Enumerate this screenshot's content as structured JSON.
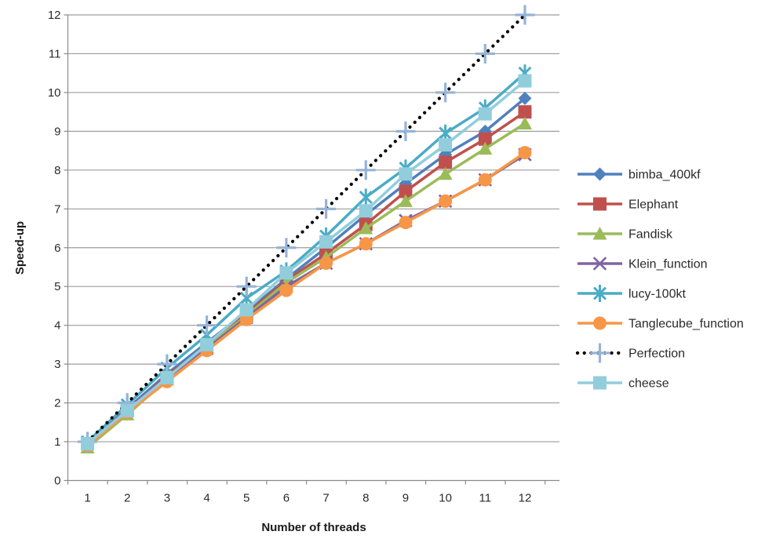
{
  "chart_data": {
    "type": "line",
    "title": "",
    "xlabel": "Number of threads",
    "ylabel": "Speed-up",
    "x": [
      1,
      2,
      3,
      4,
      5,
      6,
      7,
      8,
      9,
      10,
      11,
      12
    ],
    "ylim": [
      0,
      12
    ],
    "y_ticks": [
      0,
      1,
      2,
      3,
      4,
      5,
      6,
      7,
      8,
      9,
      10,
      11,
      12
    ],
    "grid": true,
    "legend_position": "right",
    "series": [
      {
        "name": "bimba_400kf",
        "color": "#4F81BD",
        "marker": "diamond",
        "line": "solid",
        "values": [
          0.95,
          1.85,
          2.75,
          3.55,
          4.35,
          5.2,
          6.0,
          6.85,
          7.65,
          8.4,
          9.0,
          9.85
        ]
      },
      {
        "name": "Elephant",
        "color": "#C0504D",
        "marker": "square",
        "line": "solid",
        "values": [
          0.95,
          1.8,
          2.7,
          3.45,
          4.3,
          5.15,
          5.85,
          6.6,
          7.45,
          8.2,
          8.8,
          9.5
        ]
      },
      {
        "name": "Fandisk",
        "color": "#9BBB59",
        "marker": "triangle",
        "line": "solid",
        "values": [
          0.85,
          1.7,
          2.6,
          3.45,
          4.25,
          5.1,
          5.75,
          6.5,
          7.2,
          7.9,
          8.55,
          9.2
        ]
      },
      {
        "name": "Klein_function",
        "color": "#8064A2",
        "marker": "xmark",
        "line": "solid",
        "values": [
          0.95,
          1.85,
          2.65,
          3.4,
          4.2,
          5.0,
          5.6,
          6.1,
          6.7,
          7.2,
          7.75,
          8.4
        ]
      },
      {
        "name": "lucy-100kt",
        "color": "#4BACC6",
        "marker": "asterisk",
        "line": "solid",
        "values": [
          1.0,
          1.95,
          2.9,
          3.75,
          4.7,
          5.4,
          6.3,
          7.3,
          8.05,
          8.95,
          9.6,
          10.5
        ]
      },
      {
        "name": "Tanglecube_function",
        "color": "#F79646",
        "marker": "circle",
        "line": "solid",
        "values": [
          0.9,
          1.75,
          2.55,
          3.35,
          4.15,
          4.9,
          5.6,
          6.1,
          6.65,
          7.2,
          7.75,
          8.45
        ]
      },
      {
        "name": "Perfection",
        "color": "#000000",
        "marker_color": "#95B3D7",
        "marker": "plus",
        "line": "dotted",
        "values": [
          1,
          2,
          3,
          4,
          5,
          6,
          7,
          8,
          9,
          10,
          11,
          12
        ]
      },
      {
        "name": "cheese",
        "color": "#92CDDC",
        "marker": "square",
        "line": "solid",
        "values": [
          0.95,
          1.8,
          2.65,
          3.5,
          4.4,
          5.35,
          6.15,
          6.95,
          7.9,
          8.65,
          9.45,
          10.3
        ]
      }
    ]
  },
  "style": {
    "gridline_color": "#9c9c9c",
    "axis_color": "#8a8a8a",
    "background": "#ffffff"
  }
}
